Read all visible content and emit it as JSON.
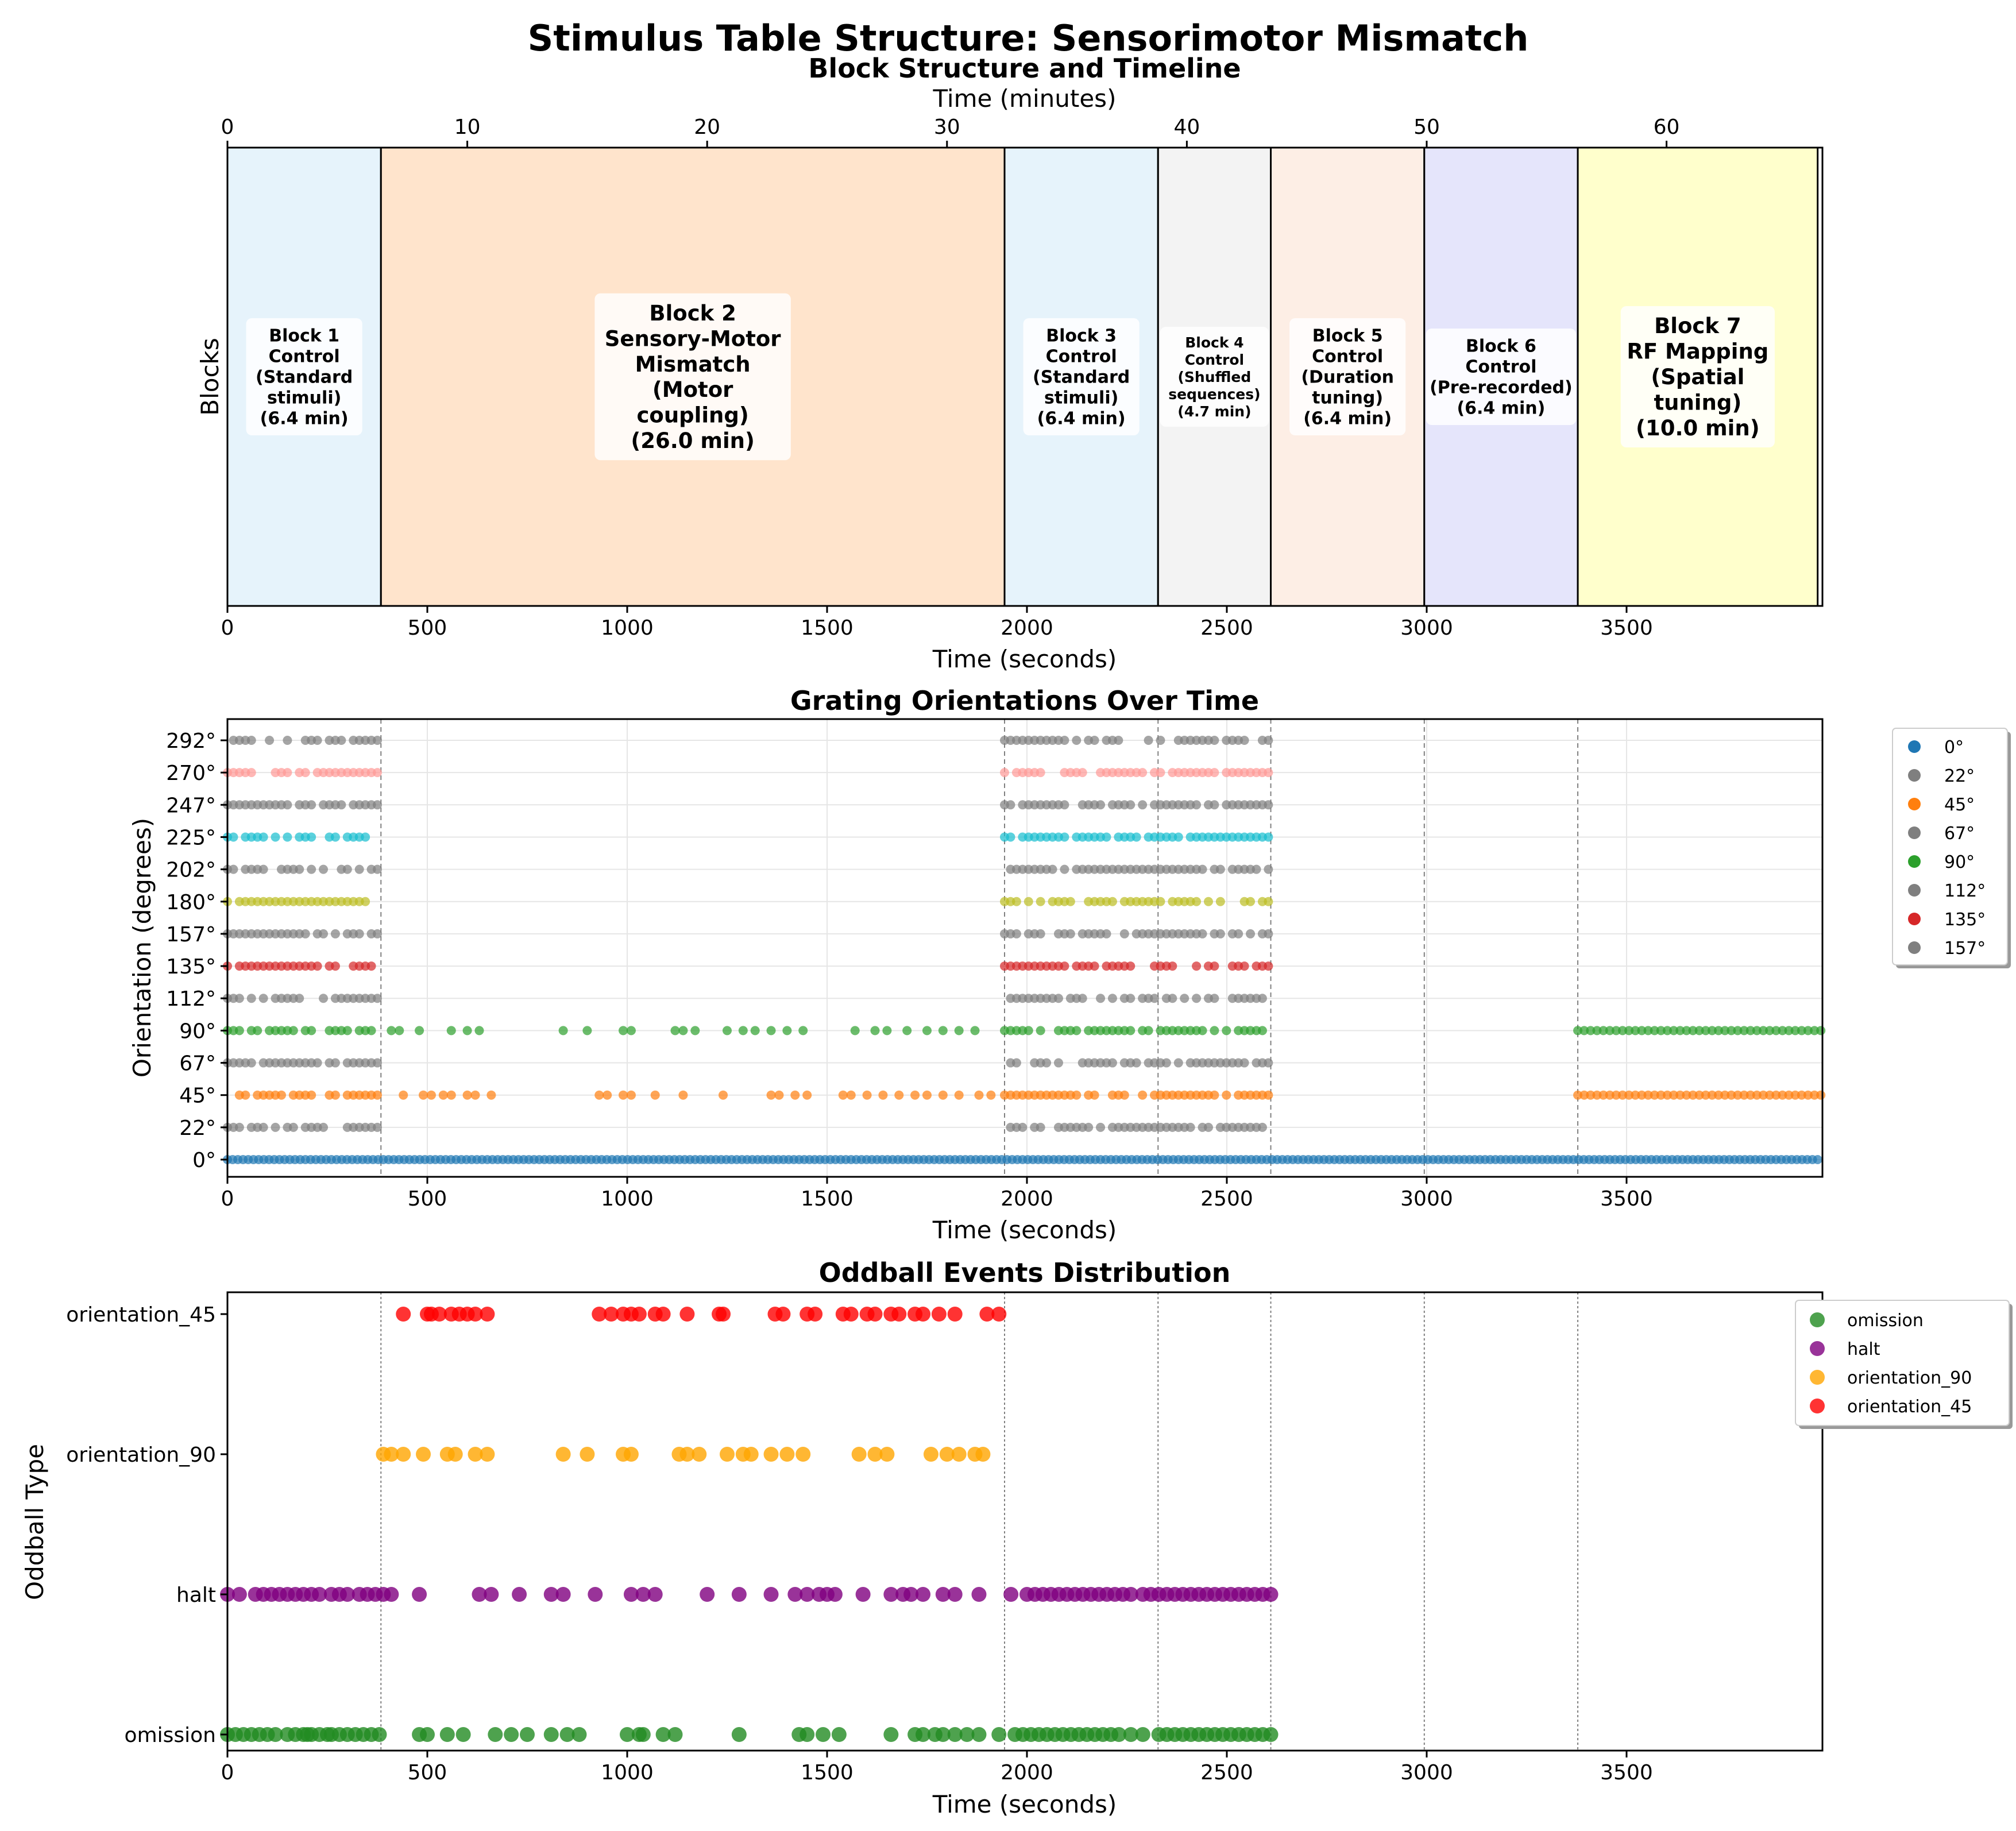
{
  "figure_title": "Stimulus Table Structure: Sensorimotor Mismatch",
  "chart_data": [
    {
      "type": "timeline",
      "title": "Block Structure and Timeline",
      "xlabel": "Time (seconds)",
      "ylabel": "Blocks",
      "top_xlabel": "Time (minutes)",
      "xlim": [
        0,
        3990
      ],
      "xticks": [
        "0",
        "500",
        "1000",
        "1500",
        "2000",
        "2500",
        "3000",
        "3500"
      ],
      "top_xticks": [
        "0",
        "10",
        "20",
        "30",
        "40",
        "50",
        "60"
      ],
      "grid": false,
      "blocks": [
        {
          "start": 0,
          "end": 384,
          "color": "#e6f3fb",
          "emphasis": "normal",
          "lines": [
            "Block 1",
            "Control",
            "(Standard",
            "stimuli)",
            "(6.4 min)"
          ]
        },
        {
          "start": 384,
          "end": 1944,
          "color": "#ffe4cc",
          "emphasis": "large",
          "lines": [
            "Block 2",
            "Sensory-Motor",
            "Mismatch",
            "(Motor",
            "coupling)",
            "(26.0 min)"
          ]
        },
        {
          "start": 1944,
          "end": 2328,
          "color": "#e6f3fb",
          "emphasis": "normal",
          "lines": [
            "Block 3",
            "Control",
            "(Standard",
            "stimuli)",
            "(6.4 min)"
          ]
        },
        {
          "start": 2328,
          "end": 2610,
          "color": "#f3f3f3",
          "emphasis": "small",
          "lines": [
            "Block 4",
            "Control",
            "(Shuffled",
            "sequences)",
            "(4.7 min)"
          ]
        },
        {
          "start": 2610,
          "end": 2994,
          "color": "#fdeee5",
          "emphasis": "normal",
          "lines": [
            "Block 5",
            "Control",
            "(Duration",
            "tuning)",
            "(6.4 min)"
          ]
        },
        {
          "start": 2994,
          "end": 3378,
          "color": "#e5e5fb",
          "emphasis": "normal",
          "lines": [
            "Block 6",
            "Control",
            "(Pre-recorded)",
            "(6.4 min)"
          ]
        },
        {
          "start": 3378,
          "end": 3978,
          "color": "#ffffcc",
          "emphasis": "large",
          "lines": [
            "Block 7",
            "RF Mapping",
            "(Spatial",
            "tuning)",
            "(10.0 min)"
          ]
        }
      ]
    },
    {
      "type": "scatter",
      "title": "Grating Orientations Over Time",
      "xlabel": "Time (seconds)",
      "ylabel": "Orientation (degrees)",
      "xlim": [
        0,
        3990
      ],
      "xticks": [
        "0",
        "500",
        "1000",
        "1500",
        "2000",
        "2500",
        "3000",
        "3500"
      ],
      "yticks": [
        "0°",
        "22°",
        "45°",
        "67°",
        "90°",
        "112°",
        "135°",
        "157°",
        "180°",
        "202°",
        "225°",
        "247°",
        "270°",
        "292°"
      ],
      "grid": true,
      "legend_position": "outside upper right",
      "legend": [
        {
          "label": "0°",
          "color": "#1f77b4"
        },
        {
          "label": "22°",
          "color": "#7f7f7f"
        },
        {
          "label": "45°",
          "color": "#ff7f0e"
        },
        {
          "label": "67°",
          "color": "#7f7f7f"
        },
        {
          "label": "90°",
          "color": "#2ca02c"
        },
        {
          "label": "112°",
          "color": "#7f7f7f"
        },
        {
          "label": "135°",
          "color": "#d62728"
        },
        {
          "label": "157°",
          "color": "#7f7f7f"
        }
      ],
      "series_colors": [
        "#1f77b4",
        "#7f7f7f",
        "#ff7f0e",
        "#7f7f7f",
        "#2ca02c",
        "#7f7f7f",
        "#d62728",
        "#7f7f7f",
        "#bcbd22",
        "#7f7f7f",
        "#17becf",
        "#7f7f7f",
        "#ff9896",
        "#7f7f7f"
      ],
      "block_boundaries": [
        384,
        1944,
        2328,
        2610,
        2994,
        3378
      ],
      "block_ranges": [
        [
          0,
          384
        ],
        [
          1944,
          2610
        ]
      ],
      "oddball_45": [
        440,
        490,
        510,
        540,
        560,
        600,
        620,
        660,
        930,
        950,
        990,
        1010,
        1070,
        1140,
        1240,
        1360,
        1380,
        1420,
        1450,
        1540,
        1560,
        1600,
        1640,
        1680,
        1720,
        1750,
        1790,
        1830,
        1880,
        1910
      ],
      "oddball_90": [
        410,
        430,
        480,
        560,
        600,
        630,
        840,
        900,
        990,
        1010,
        1120,
        1140,
        1170,
        1250,
        1290,
        1320,
        1360,
        1400,
        1440,
        1570,
        1620,
        1650,
        1700,
        1750,
        1790,
        1830,
        1870
      ],
      "block7_orientations": [
        45,
        90
      ]
    },
    {
      "type": "scatter",
      "title": "Oddball Events Distribution",
      "xlabel": "Time (seconds)",
      "ylabel": "Oddball Type",
      "xlim": [
        0,
        3990
      ],
      "xticks": [
        "0",
        "500",
        "1000",
        "1500",
        "2000",
        "2500",
        "3000",
        "3500"
      ],
      "categories": [
        "omission",
        "halt",
        "orientation_90",
        "orientation_45"
      ],
      "grid": false,
      "legend_position": "upper right",
      "series": [
        {
          "name": "omission",
          "color": "#228b22",
          "x": [
            0,
            20,
            40,
            60,
            80,
            100,
            120,
            150,
            170,
            190,
            200,
            210,
            230,
            250,
            260,
            280,
            300,
            320,
            340,
            360,
            380,
            480,
            500,
            550,
            590,
            670,
            710,
            750,
            810,
            850,
            880,
            1000,
            1030,
            1040,
            1090,
            1120,
            1280,
            1430,
            1450,
            1490,
            1530,
            1660,
            1720,
            1740,
            1770,
            1790,
            1820,
            1850,
            1880,
            1930,
            1970,
            1990,
            2010,
            2030,
            2050,
            2070,
            2090,
            2110,
            2130,
            2150,
            2170,
            2190,
            2210,
            2230,
            2260,
            2290,
            2330,
            2350,
            2370,
            2390,
            2410,
            2430,
            2450,
            2470,
            2490,
            2510,
            2530,
            2550,
            2570,
            2590,
            2610
          ]
        },
        {
          "name": "halt",
          "color": "#800080",
          "x": [
            0,
            30,
            70,
            90,
            110,
            130,
            150,
            170,
            190,
            210,
            230,
            260,
            280,
            300,
            330,
            350,
            370,
            390,
            410,
            480,
            630,
            660,
            730,
            810,
            840,
            920,
            1010,
            1040,
            1070,
            1200,
            1280,
            1360,
            1420,
            1450,
            1480,
            1500,
            1520,
            1590,
            1660,
            1690,
            1710,
            1740,
            1790,
            1820,
            1880,
            1960,
            2000,
            2020,
            2040,
            2060,
            2080,
            2100,
            2120,
            2140,
            2160,
            2180,
            2200,
            2220,
            2240,
            2260,
            2290,
            2310,
            2330,
            2350,
            2370,
            2390,
            2410,
            2430,
            2450,
            2470,
            2490,
            2510,
            2530,
            2550,
            2570,
            2590,
            2610
          ]
        },
        {
          "name": "orientation_90",
          "color": "#ffa500",
          "x": [
            390,
            410,
            440,
            490,
            550,
            570,
            620,
            650,
            840,
            900,
            990,
            1010,
            1130,
            1150,
            1180,
            1250,
            1290,
            1310,
            1360,
            1400,
            1440,
            1580,
            1620,
            1650,
            1760,
            1800,
            1830,
            1870,
            1890
          ]
        },
        {
          "name": "orientation_45",
          "color": "#ff0000",
          "x": [
            440,
            500,
            510,
            530,
            560,
            580,
            600,
            620,
            650,
            930,
            960,
            990,
            1010,
            1030,
            1070,
            1090,
            1150,
            1230,
            1240,
            1370,
            1390,
            1450,
            1470,
            1540,
            1560,
            1600,
            1620,
            1660,
            1680,
            1720,
            1740,
            1780,
            1820,
            1900,
            1930
          ]
        }
      ],
      "block_boundaries": [
        384,
        1944,
        2328,
        2610,
        2994,
        3378
      ]
    }
  ]
}
